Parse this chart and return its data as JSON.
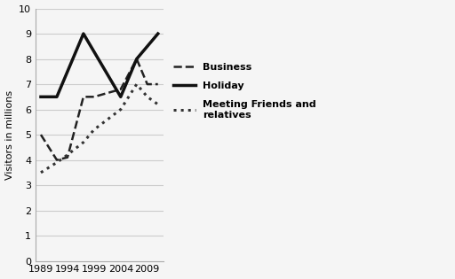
{
  "business": {
    "x": [
      1989,
      1992,
      1994,
      1997,
      1999,
      2004,
      2007,
      2009,
      2011
    ],
    "y": [
      5.0,
      4.0,
      4.1,
      6.5,
      6.5,
      6.8,
      8.0,
      7.0,
      7.0
    ],
    "label": "Business",
    "linestyle": "dashed",
    "linewidth": 1.8,
    "color": "#222222"
  },
  "holiday": {
    "x": [
      1989,
      1992,
      1997,
      2004,
      2007,
      2011
    ],
    "y": [
      6.5,
      6.5,
      9.0,
      6.5,
      8.0,
      9.0
    ],
    "label": "Holiday",
    "linestyle": "solid",
    "linewidth": 2.5,
    "color": "#111111"
  },
  "friends": {
    "x": [
      1989,
      1992,
      1994,
      1997,
      1999,
      2004,
      2007,
      2009,
      2011
    ],
    "y": [
      3.5,
      3.9,
      4.2,
      4.7,
      5.2,
      6.0,
      7.0,
      6.5,
      6.2
    ],
    "label": "Meeting Friends and\nrelatives",
    "linestyle": "dotted",
    "linewidth": 2.2,
    "color": "#333333"
  },
  "xlim": [
    1988,
    2012
  ],
  "ylim": [
    0,
    10
  ],
  "xticks": [
    1989,
    1994,
    1999,
    2004,
    2009
  ],
  "yticks": [
    0,
    1,
    2,
    3,
    4,
    5,
    6,
    7,
    8,
    9,
    10
  ],
  "ylabel": "Visitors in millions",
  "background_color": "#f5f5f5",
  "grid_color": "#cccccc",
  "legend_fontsize": 8,
  "tick_fontsize": 8,
  "ylabel_fontsize": 8
}
